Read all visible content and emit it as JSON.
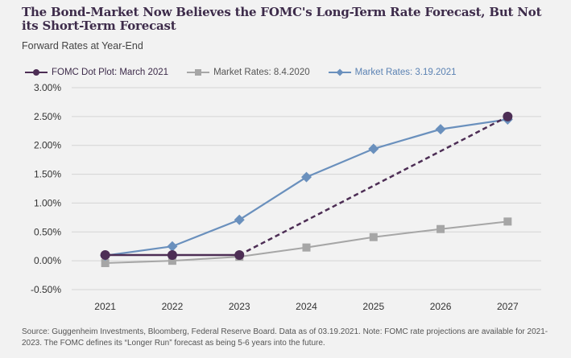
{
  "title": "The Bond-Market Now Believes the FOMC's Long-Term Rate Forecast, But Not its Short-Term Forecast",
  "subtitle": "Forward Rates at Year-End",
  "source": "Source: Guggenheim Investments, Bloomberg, Federal Reserve Board. Data as of 03.19.2021. Note: FOMC rate projections are available for 2021-2023. The FOMC defines its “Longer Run” forecast as being 5-6 years into the future.",
  "chart_data": {
    "type": "line",
    "categories": [
      "2021",
      "2022",
      "2023",
      "2024",
      "2025",
      "2026",
      "2027"
    ],
    "y_ticks": [
      "-0.50%",
      "0.00%",
      "0.50%",
      "1.00%",
      "1.50%",
      "2.00%",
      "2.50%",
      "3.00%"
    ],
    "ylim": [
      -0.5,
      3.0
    ],
    "grid": true,
    "legend_position": "top-left",
    "series": [
      {
        "name": "FOMC Dot Plot: March 2021",
        "color": "#4d2e55",
        "marker": "circle",
        "values": [
          0.1,
          0.1,
          0.1,
          null,
          null,
          null,
          2.5
        ],
        "dashed_segment_from": "2023",
        "dashed_segment_to": "2027"
      },
      {
        "name": "Market Rates: 8.4.2020",
        "color": "#a6a6a6",
        "marker": "square",
        "values": [
          -0.04,
          0.0,
          0.07,
          0.23,
          0.41,
          0.55,
          0.68
        ]
      },
      {
        "name": "Market Rates: 3.19.2021",
        "color": "#6a90bd",
        "marker": "diamond",
        "values": [
          0.09,
          0.25,
          0.71,
          1.45,
          1.94,
          2.28,
          2.45
        ]
      }
    ]
  }
}
